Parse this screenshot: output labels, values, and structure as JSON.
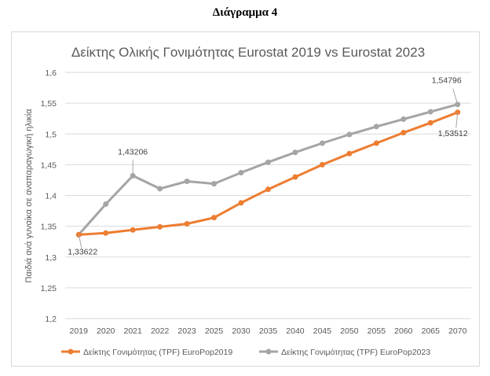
{
  "caption": "Διάγραμμα 4",
  "chart_data": {
    "type": "line",
    "title": "Δείκτης Ολικής Γονιμότητας Eurostat 2019 vs Eurostat 2023",
    "xlabel": "",
    "ylabel": "Παιδιά ανά γυναίκα σε αναπαραγωγική ηλικία",
    "categories": [
      "2019",
      "2020",
      "2021",
      "2022",
      "2023",
      "2025",
      "2030",
      "2035",
      "2040",
      "2045",
      "2050",
      "2055",
      "2060",
      "2065",
      "2070"
    ],
    "ylim": [
      1.2,
      1.6
    ],
    "yticks": [
      1.2,
      1.25,
      1.3,
      1.35,
      1.4,
      1.45,
      1.5,
      1.55,
      1.6
    ],
    "ytick_labels": [
      "1,2",
      "1,25",
      "1,3",
      "1,35",
      "1,4",
      "1,45",
      "1,5",
      "1,55",
      "1,6"
    ],
    "grid": true,
    "legend_position": "bottom",
    "series": [
      {
        "name": "Δείκτης Γονιμότητας (TPF) EuroPop2019",
        "color": "#ed7d31",
        "values": [
          1.33622,
          1.339,
          1.344,
          1.349,
          1.354,
          1.364,
          1.388,
          1.41,
          1.43,
          1.45,
          1.468,
          1.485,
          1.502,
          1.518,
          1.53512
        ]
      },
      {
        "name": "Δείκτης Γονιμότητας (TPF) EuroPop2023",
        "color": "#a5a5a5",
        "values": [
          1.33622,
          1.386,
          1.43206,
          1.411,
          1.423,
          1.419,
          1.437,
          1.454,
          1.47,
          1.485,
          1.499,
          1.512,
          1.524,
          1.536,
          1.54796
        ]
      }
    ],
    "annotations": [
      {
        "text": "1,33622",
        "series": 0,
        "index": 0
      },
      {
        "text": "1,43206",
        "series": 1,
        "index": 2
      },
      {
        "text": "1,54796",
        "series": 1,
        "index": 14
      },
      {
        "text": "1,53512",
        "series": 0,
        "index": 14
      }
    ]
  }
}
